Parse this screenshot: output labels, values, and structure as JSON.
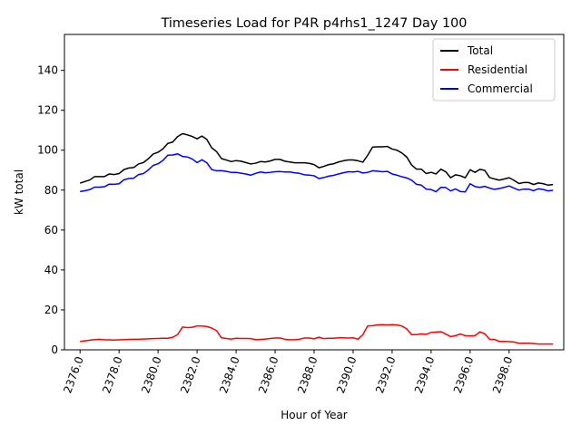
{
  "chart_data": {
    "type": "line",
    "title": "Timeseries Load for P4R p4rhs1_1247  Day 100",
    "xlabel": "Hour of Year",
    "ylabel": "kW total",
    "xlim": [
      2375.2,
      2400.8
    ],
    "ylim": [
      0,
      158
    ],
    "x_ticks": [
      2376,
      2378,
      2380,
      2382,
      2384,
      2386,
      2388,
      2390,
      2392,
      2394,
      2396,
      2398
    ],
    "x_tick_labels": [
      "2376.0",
      "2378.0",
      "2380.0",
      "2382.0",
      "2384.0",
      "2386.0",
      "2388.0",
      "2390.0",
      "2392.0",
      "2394.0",
      "2396.0",
      "2398.0"
    ],
    "y_ticks": [
      0,
      20,
      40,
      60,
      80,
      100,
      120,
      140
    ],
    "y_tick_labels": [
      "0",
      "20",
      "40",
      "60",
      "80",
      "100",
      "120",
      "140"
    ],
    "grid": false,
    "legend_position": "top-right",
    "x_start": 2376.0,
    "x_step": 0.25,
    "series": [
      {
        "name": "Total",
        "color": "#000000",
        "values": [
          83.5,
          84.3,
          85.1,
          86.8,
          86.8,
          86.8,
          88.1,
          87.8,
          88.3,
          90.3,
          91.1,
          91.3,
          93.1,
          93.8,
          95.7,
          98.1,
          99.0,
          100.7,
          103.4,
          104.1,
          106.8,
          108.3,
          107.7,
          106.9,
          105.7,
          107.1,
          105.4,
          101.2,
          99.3,
          95.8,
          95.1,
          94.3,
          94.8,
          94.5,
          93.8,
          93.1,
          93.5,
          94.3,
          94.1,
          94.6,
          95.4,
          95.4,
          94.5,
          94.1,
          93.7,
          93.7,
          93.7,
          93.4,
          92.8,
          91.2,
          91.9,
          92.8,
          93.2,
          94.1,
          94.7,
          95.1,
          95.1,
          94.7,
          94.0,
          97.5,
          101.6,
          101.7,
          101.7,
          101.9,
          100.6,
          100.0,
          98.6,
          96.6,
          92.6,
          90.5,
          90.5,
          88.3,
          88.9,
          88.1,
          90.5,
          89.2,
          86.2,
          87.7,
          87.2,
          86.2,
          90.2,
          88.9,
          90.4,
          89.9,
          86.3,
          85.6,
          85.0,
          85.6,
          86.2,
          84.9,
          83.3,
          83.8,
          83.8,
          82.8,
          83.6,
          83.2,
          82.5,
          82.8
        ]
      },
      {
        "name": "Residential",
        "color": "#ff0000",
        "values": [
          4.2,
          4.5,
          4.8,
          5.1,
          5.3,
          5.0,
          5.0,
          4.9,
          5.0,
          5.1,
          5.2,
          5.3,
          5.3,
          5.4,
          5.5,
          5.6,
          5.7,
          5.8,
          5.8,
          6.3,
          7.6,
          11.4,
          11.1,
          11.3,
          12.0,
          11.9,
          11.7,
          10.9,
          9.6,
          6.0,
          5.7,
          5.4,
          5.8,
          5.7,
          5.7,
          5.6,
          5.1,
          5.2,
          5.4,
          5.7,
          5.9,
          5.9,
          5.3,
          5.0,
          5.1,
          5.3,
          5.9,
          5.9,
          5.5,
          6.3,
          5.6,
          5.8,
          5.8,
          6.0,
          6.0,
          5.9,
          6.0,
          5.3,
          7.6,
          12.0,
          12.1,
          12.5,
          12.6,
          12.5,
          12.6,
          12.5,
          11.9,
          10.5,
          7.6,
          7.6,
          8.0,
          7.8,
          8.7,
          8.9,
          9.1,
          7.9,
          6.6,
          7.1,
          7.9,
          7.1,
          7.0,
          7.1,
          9.0,
          8.0,
          5.3,
          5.2,
          4.2,
          4.2,
          4.1,
          3.9,
          3.3,
          3.3,
          3.3,
          3.1,
          2.9,
          2.9,
          2.9,
          2.9
        ]
      },
      {
        "name": "Commercial",
        "color": "#0000ff",
        "values": [
          79.3,
          79.7,
          80.3,
          81.5,
          81.5,
          81.7,
          83.0,
          82.9,
          83.2,
          85.2,
          85.8,
          86.0,
          87.8,
          88.3,
          90.1,
          92.4,
          93.2,
          94.9,
          97.5,
          97.6,
          98.2,
          96.9,
          96.6,
          95.6,
          93.8,
          95.2,
          93.7,
          90.3,
          89.7,
          89.8,
          89.4,
          88.9,
          88.9,
          88.5,
          88.1,
          87.5,
          88.4,
          89.1,
          88.7,
          88.9,
          89.2,
          89.3,
          89.1,
          89.1,
          88.7,
          88.4,
          87.7,
          87.5,
          87.2,
          85.8,
          86.3,
          87.0,
          87.4,
          88.1,
          88.7,
          89.2,
          89.1,
          89.4,
          88.6,
          88.9,
          89.7,
          89.5,
          89.2,
          89.4,
          88.1,
          87.5,
          86.7,
          86.1,
          85.0,
          82.9,
          82.5,
          80.5,
          80.3,
          79.2,
          81.4,
          81.3,
          79.6,
          80.6,
          79.3,
          79.1,
          83.2,
          81.8,
          81.4,
          81.9,
          81.0,
          80.4,
          80.8,
          81.4,
          82.1,
          81.0,
          80.0,
          80.5,
          80.5,
          79.7,
          80.7,
          80.3,
          79.6,
          79.9
        ]
      }
    ]
  }
}
